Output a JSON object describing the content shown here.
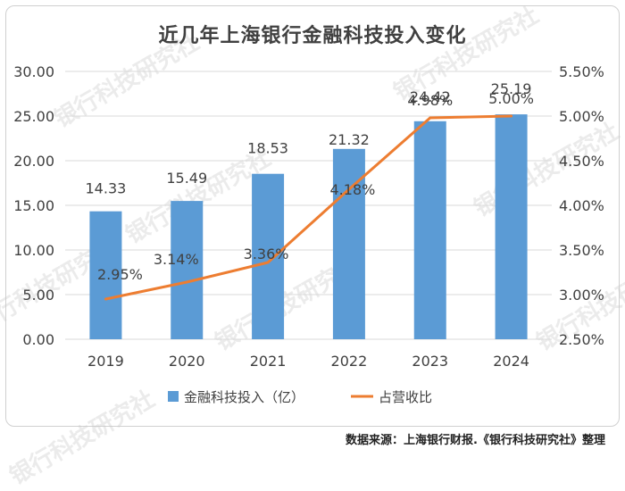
{
  "title": "近几年上海银行金融科技投入变化",
  "source": "数据来源：上海银行财报.《银行科技研究社》整理",
  "watermark": "银行科技研究社",
  "colors": {
    "bar": "#5b9bd5",
    "line": "#ed7d31",
    "grid": "#d9d9d9",
    "text": "#404040"
  },
  "chart_data": {
    "type": "bar",
    "categories": [
      "2019",
      "2020",
      "2021",
      "2022",
      "2023",
      "2024"
    ],
    "series": [
      {
        "name": "金融科技投入（亿）",
        "type": "bar",
        "axis": "left",
        "values": [
          14.33,
          15.49,
          18.53,
          21.32,
          24.42,
          25.19
        ],
        "labels": [
          "14.33",
          "15.49",
          "18.53",
          "21.32",
          "24.42",
          "25.19"
        ]
      },
      {
        "name": "占营收比",
        "type": "line",
        "axis": "right",
        "values": [
          2.95,
          3.14,
          3.36,
          4.18,
          4.98,
          5.0
        ],
        "labels": [
          "2.95%",
          "3.14%",
          "3.36%",
          "4.18%",
          "4.98%",
          "5.00%"
        ]
      }
    ],
    "y_left": {
      "min": 0,
      "max": 30,
      "ticks": [
        "0.00",
        "5.00",
        "10.00",
        "15.00",
        "20.00",
        "25.00",
        "30.00"
      ]
    },
    "y_right": {
      "min": 2.5,
      "max": 5.5,
      "ticks": [
        "2.50%",
        "3.00%",
        "3.50%",
        "4.00%",
        "4.50%",
        "5.00%",
        "5.50%"
      ]
    },
    "grid": true,
    "legend_position": "bottom"
  }
}
